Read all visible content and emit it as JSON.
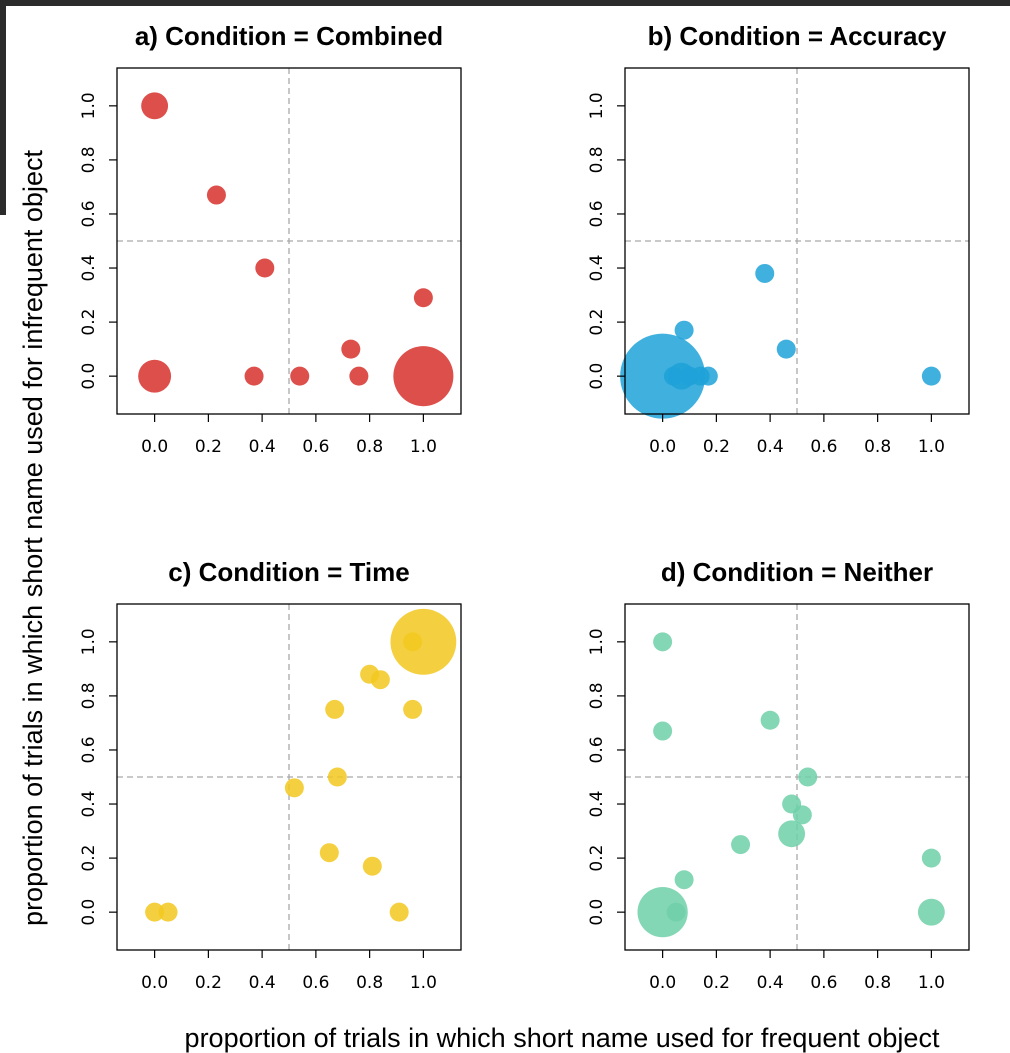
{
  "figure": {
    "xlabel": "proportion of trials in which short name used for frequent object",
    "ylabel": "proportion of trials in which short name used for infrequent object"
  },
  "chart_data": [
    {
      "type": "scatter",
      "title": "a) Condition = Combined",
      "color": "#d7302b",
      "x_ticks": [
        "0.0",
        "0.2",
        "0.4",
        "0.6",
        "0.8",
        "1.0"
      ],
      "y_ticks": [
        "0.0",
        "0.2",
        "0.4",
        "0.6",
        "0.8",
        "1.0"
      ],
      "xlim": [
        -0.14,
        1.14
      ],
      "ylim": [
        -0.14,
        1.14
      ],
      "reference_lines": {
        "x": 0.5,
        "y": 0.5
      },
      "points": [
        {
          "x": 0.0,
          "y": 1.0,
          "size": 2
        },
        {
          "x": 0.23,
          "y": 0.67,
          "size": 1
        },
        {
          "x": 0.41,
          "y": 0.4,
          "size": 1
        },
        {
          "x": 1.0,
          "y": 0.29,
          "size": 1
        },
        {
          "x": 0.73,
          "y": 0.1,
          "size": 1
        },
        {
          "x": 0.0,
          "y": 0.0,
          "size": 3
        },
        {
          "x": 0.37,
          "y": 0.0,
          "size": 1
        },
        {
          "x": 0.54,
          "y": 0.0,
          "size": 1
        },
        {
          "x": 0.76,
          "y": 0.0,
          "size": 1
        },
        {
          "x": 1.0,
          "y": 0.0,
          "size": 10
        }
      ]
    },
    {
      "type": "scatter",
      "title": "b) Condition = Accuracy",
      "color": "#1fa2d8",
      "x_ticks": [
        "0.0",
        "0.2",
        "0.4",
        "0.6",
        "0.8",
        "1.0"
      ],
      "y_ticks": [
        "0.0",
        "0.2",
        "0.4",
        "0.6",
        "0.8",
        "1.0"
      ],
      "xlim": [
        -0.14,
        1.14
      ],
      "ylim": [
        -0.14,
        1.14
      ],
      "reference_lines": {
        "x": 0.5,
        "y": 0.5
      },
      "points": [
        {
          "x": 0.38,
          "y": 0.38,
          "size": 1
        },
        {
          "x": 0.08,
          "y": 0.17,
          "size": 1
        },
        {
          "x": 0.46,
          "y": 0.1,
          "size": 1
        },
        {
          "x": 0.0,
          "y": 0.0,
          "size": 20
        },
        {
          "x": 0.04,
          "y": 0.0,
          "size": 1
        },
        {
          "x": 0.07,
          "y": 0.0,
          "size": 2
        },
        {
          "x": 0.1,
          "y": 0.0,
          "size": 1
        },
        {
          "x": 0.14,
          "y": 0.0,
          "size": 1
        },
        {
          "x": 0.17,
          "y": 0.0,
          "size": 1
        },
        {
          "x": 1.0,
          "y": 0.0,
          "size": 1
        }
      ]
    },
    {
      "type": "scatter",
      "title": "c) Condition = Time",
      "color": "#f2c81f",
      "x_ticks": [
        "0.0",
        "0.2",
        "0.4",
        "0.6",
        "0.8",
        "1.0"
      ],
      "y_ticks": [
        "0.0",
        "0.2",
        "0.4",
        "0.6",
        "0.8",
        "1.0"
      ],
      "xlim": [
        -0.14,
        1.14
      ],
      "ylim": [
        -0.14,
        1.14
      ],
      "reference_lines": {
        "x": 0.5,
        "y": 0.5
      },
      "points": [
        {
          "x": 1.0,
          "y": 1.0,
          "size": 12
        },
        {
          "x": 0.96,
          "y": 1.0,
          "size": 1
        },
        {
          "x": 0.8,
          "y": 0.88,
          "size": 1
        },
        {
          "x": 0.84,
          "y": 0.86,
          "size": 1
        },
        {
          "x": 0.67,
          "y": 0.75,
          "size": 1
        },
        {
          "x": 0.96,
          "y": 0.75,
          "size": 1
        },
        {
          "x": 0.68,
          "y": 0.5,
          "size": 1
        },
        {
          "x": 0.52,
          "y": 0.46,
          "size": 1
        },
        {
          "x": 0.65,
          "y": 0.22,
          "size": 1
        },
        {
          "x": 0.81,
          "y": 0.17,
          "size": 1
        },
        {
          "x": 0.0,
          "y": 0.0,
          "size": 1
        },
        {
          "x": 0.05,
          "y": 0.0,
          "size": 1
        },
        {
          "x": 0.91,
          "y": 0.0,
          "size": 1
        }
      ]
    },
    {
      "type": "scatter",
      "title": "d) Condition = Neither",
      "color": "#6fd0a8",
      "x_ticks": [
        "0.0",
        "0.2",
        "0.4",
        "0.6",
        "0.8",
        "1.0"
      ],
      "y_ticks": [
        "0.0",
        "0.2",
        "0.4",
        "0.6",
        "0.8",
        "1.0"
      ],
      "xlim": [
        -0.14,
        1.14
      ],
      "ylim": [
        -0.14,
        1.14
      ],
      "reference_lines": {
        "x": 0.5,
        "y": 0.5
      },
      "points": [
        {
          "x": 0.0,
          "y": 1.0,
          "size": 1
        },
        {
          "x": 0.0,
          "y": 0.67,
          "size": 1
        },
        {
          "x": 0.4,
          "y": 0.71,
          "size": 1
        },
        {
          "x": 0.54,
          "y": 0.5,
          "size": 1
        },
        {
          "x": 0.48,
          "y": 0.4,
          "size": 1
        },
        {
          "x": 0.52,
          "y": 0.36,
          "size": 1
        },
        {
          "x": 0.48,
          "y": 0.29,
          "size": 2
        },
        {
          "x": 0.29,
          "y": 0.25,
          "size": 1
        },
        {
          "x": 0.08,
          "y": 0.12,
          "size": 1
        },
        {
          "x": 1.0,
          "y": 0.2,
          "size": 1
        },
        {
          "x": 0.0,
          "y": 0.0,
          "size": 7
        },
        {
          "x": 0.05,
          "y": 0.0,
          "size": 1
        },
        {
          "x": 1.0,
          "y": 0.0,
          "size": 2
        }
      ]
    }
  ]
}
